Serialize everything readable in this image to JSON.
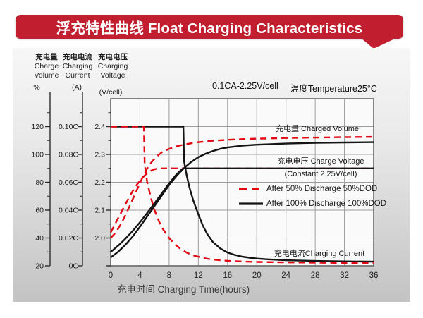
{
  "banner": {
    "title": "浮充特性曲线 Float Charging Characteristics",
    "color": "#c11f30"
  },
  "axis_headers": [
    {
      "lines": [
        "充电量",
        "Charge",
        "Volume"
      ],
      "unit": "%"
    },
    {
      "lines": [
        "充电电流",
        "Charging",
        "Current"
      ],
      "unit": "(A)"
    },
    {
      "lines": [
        "充电电压",
        "Charging",
        "Voltage"
      ],
      "unit": "(V/cell)"
    }
  ],
  "condition": {
    "left": "0.1CA-2.25V/cell",
    "right": "温度Temperature25°C"
  },
  "annotations": {
    "charged_volume": "充电量 Charged Volume",
    "charge_voltage_line1": "充电电压 Charge Voltage",
    "charge_voltage_line2": "(Constant 2.25V/cell)",
    "charging_current": "充电电流Charging Current"
  },
  "legend": [
    {
      "label": "After 50% Discharge 50%DOD",
      "style": "dashed",
      "color": "#e30613"
    },
    {
      "label": "After 100%  Discharge 100%DOD",
      "style": "solid",
      "color": "#141414"
    }
  ],
  "chart_data": {
    "type": "line",
    "title": "浮充特性曲线 Float Charging Characteristics",
    "condition": "0.1CA-2.25V/cell  温度Temperature25°C",
    "x_title": "充电时间 Charging Time(hours)",
    "x_ticks": [
      0,
      4,
      8,
      12,
      16,
      20,
      24,
      28,
      32,
      36
    ],
    "x_range": [
      0,
      36
    ],
    "grid": true,
    "legend_position": "inside-right",
    "axes": {
      "charge_volume_percent": {
        "tick_labels": [
          "120",
          "100",
          "80",
          "60",
          "40",
          "20"
        ],
        "tick_values": [
          120,
          100,
          80,
          60,
          40,
          20
        ],
        "range": [
          20,
          140
        ]
      },
      "charging_current_CA": {
        "tick_labels": [
          "0.10C",
          "0.08C",
          "0.06C",
          "0.04C",
          "0.02C",
          "0C"
        ],
        "tick_values": [
          0.1,
          0.08,
          0.06,
          0.04,
          0.02,
          0
        ],
        "range": [
          0,
          0.12
        ]
      },
      "charging_voltage_Vcell": {
        "tick_labels": [
          "2.4",
          "2.3",
          "2.2",
          "2.1",
          "2.0"
        ],
        "tick_values": [
          2.4,
          2.3,
          2.2,
          2.1,
          2.0
        ],
        "range": [
          1.9,
          2.5
        ]
      }
    },
    "series": [
      {
        "id": "charged-volume-100dod",
        "name": "Charged Volume – After 100% Discharge (100%DOD)",
        "axis": "percent",
        "color": "#141414",
        "dashed": false,
        "points": [
          [
            0,
            26
          ],
          [
            1,
            30
          ],
          [
            2,
            35
          ],
          [
            3,
            41
          ],
          [
            4,
            48
          ],
          [
            5,
            55.5
          ],
          [
            6,
            63
          ],
          [
            7,
            70.5
          ],
          [
            8,
            78
          ],
          [
            9,
            84.5
          ],
          [
            10,
            90
          ],
          [
            11,
            94.5
          ],
          [
            12,
            98
          ],
          [
            13,
            100.5
          ],
          [
            14,
            102.5
          ],
          [
            15,
            104
          ],
          [
            16,
            105
          ],
          [
            18,
            106.3
          ],
          [
            20,
            107
          ],
          [
            24,
            107.8
          ],
          [
            28,
            108.3
          ],
          [
            32,
            108.6
          ],
          [
            36,
            108.8
          ]
        ]
      },
      {
        "id": "charged-volume-50dod",
        "name": "Charged Volume – After 50% Discharge (50%DOD)",
        "axis": "percent",
        "color": "#e30613",
        "dashed": true,
        "points": [
          [
            0,
            40
          ],
          [
            0.7,
            44
          ],
          [
            1.4,
            50
          ],
          [
            2,
            56
          ],
          [
            2.6,
            63
          ],
          [
            3.2,
            70
          ],
          [
            3.8,
            77
          ],
          [
            4.4,
            84
          ],
          [
            5,
            90
          ],
          [
            5.6,
            94.5
          ],
          [
            6.2,
            98
          ],
          [
            7,
            101.5
          ],
          [
            8,
            104
          ],
          [
            9,
            105.8
          ],
          [
            10,
            107
          ],
          [
            11,
            108
          ],
          [
            12,
            108.8
          ],
          [
            14,
            109.8
          ],
          [
            16,
            110.5
          ],
          [
            18,
            111
          ],
          [
            20,
            111.3
          ],
          [
            24,
            111.8
          ],
          [
            28,
            112.1
          ],
          [
            32,
            112.4
          ],
          [
            36,
            112.6
          ]
        ]
      },
      {
        "id": "charge-voltage-50dod",
        "name": "Charge Voltage – After 50% Discharge (50%DOD)",
        "axis": "voltage",
        "color": "#e30613",
        "dashed": true,
        "points": [
          [
            0,
            2.02
          ],
          [
            0.6,
            2.05
          ],
          [
            1.2,
            2.08
          ],
          [
            1.8,
            2.11
          ],
          [
            2.4,
            2.14
          ],
          [
            3,
            2.168
          ],
          [
            3.6,
            2.192
          ],
          [
            4.2,
            2.212
          ],
          [
            4.8,
            2.228
          ],
          [
            5.4,
            2.24
          ],
          [
            6,
            2.247
          ],
          [
            6.6,
            2.25
          ],
          [
            36,
            2.25
          ]
        ]
      },
      {
        "id": "charge-voltage-100dod",
        "name": "Charge Voltage – After 100% Discharge (100%DOD)",
        "axis": "voltage",
        "color": "#141414",
        "dashed": false,
        "points": [
          [
            0,
            1.95
          ],
          [
            1,
            1.972
          ],
          [
            2,
            1.997
          ],
          [
            3,
            2.025
          ],
          [
            4,
            2.056
          ],
          [
            5,
            2.09
          ],
          [
            6,
            2.125
          ],
          [
            7,
            2.16
          ],
          [
            8,
            2.196
          ],
          [
            9,
            2.228
          ],
          [
            9.6,
            2.243
          ],
          [
            10,
            2.25
          ],
          [
            36,
            2.25
          ]
        ]
      },
      {
        "id": "charging-current-100dod",
        "name": "Charging Current – After 100% Discharge (100%DOD)",
        "axis": "current",
        "color": "#141414",
        "dashed": false,
        "points": [
          [
            0,
            0.1
          ],
          [
            9.95,
            0.1
          ],
          [
            10.05,
            0.075
          ],
          [
            10.4,
            0.065
          ],
          [
            10.8,
            0.056
          ],
          [
            11.3,
            0.047
          ],
          [
            12,
            0.037
          ],
          [
            12.6,
            0.029
          ],
          [
            13.2,
            0.023
          ],
          [
            14,
            0.017
          ],
          [
            15,
            0.0125
          ],
          [
            16,
            0.0095
          ],
          [
            17,
            0.0078
          ],
          [
            18,
            0.0066
          ],
          [
            19,
            0.0058
          ],
          [
            20,
            0.0052
          ],
          [
            22,
            0.0045
          ],
          [
            24,
            0.004
          ],
          [
            28,
            0.0035
          ],
          [
            32,
            0.0032
          ],
          [
            36,
            0.003
          ]
        ]
      },
      {
        "id": "charging-current-50dod",
        "name": "Charging Current – After 50% Discharge (50%DOD)",
        "axis": "current",
        "color": "#e30613",
        "dashed": true,
        "points": [
          [
            0,
            0.1
          ],
          [
            4.55,
            0.1
          ],
          [
            4.65,
            0.073
          ],
          [
            5,
            0.06
          ],
          [
            5.5,
            0.049
          ],
          [
            6,
            0.04
          ],
          [
            6.6,
            0.032
          ],
          [
            7.2,
            0.026
          ],
          [
            8,
            0.02
          ],
          [
            8.8,
            0.0155
          ],
          [
            9.6,
            0.012
          ],
          [
            10.5,
            0.0092
          ],
          [
            11.5,
            0.0072
          ],
          [
            12.5,
            0.0058
          ],
          [
            13.5,
            0.0048
          ],
          [
            15,
            0.004
          ],
          [
            16,
            0.0036
          ],
          [
            18,
            0.0031
          ],
          [
            20,
            0.0028
          ],
          [
            24,
            0.0025
          ],
          [
            28,
            0.0023
          ],
          [
            32,
            0.0021
          ],
          [
            36,
            0.002
          ]
        ]
      }
    ]
  }
}
